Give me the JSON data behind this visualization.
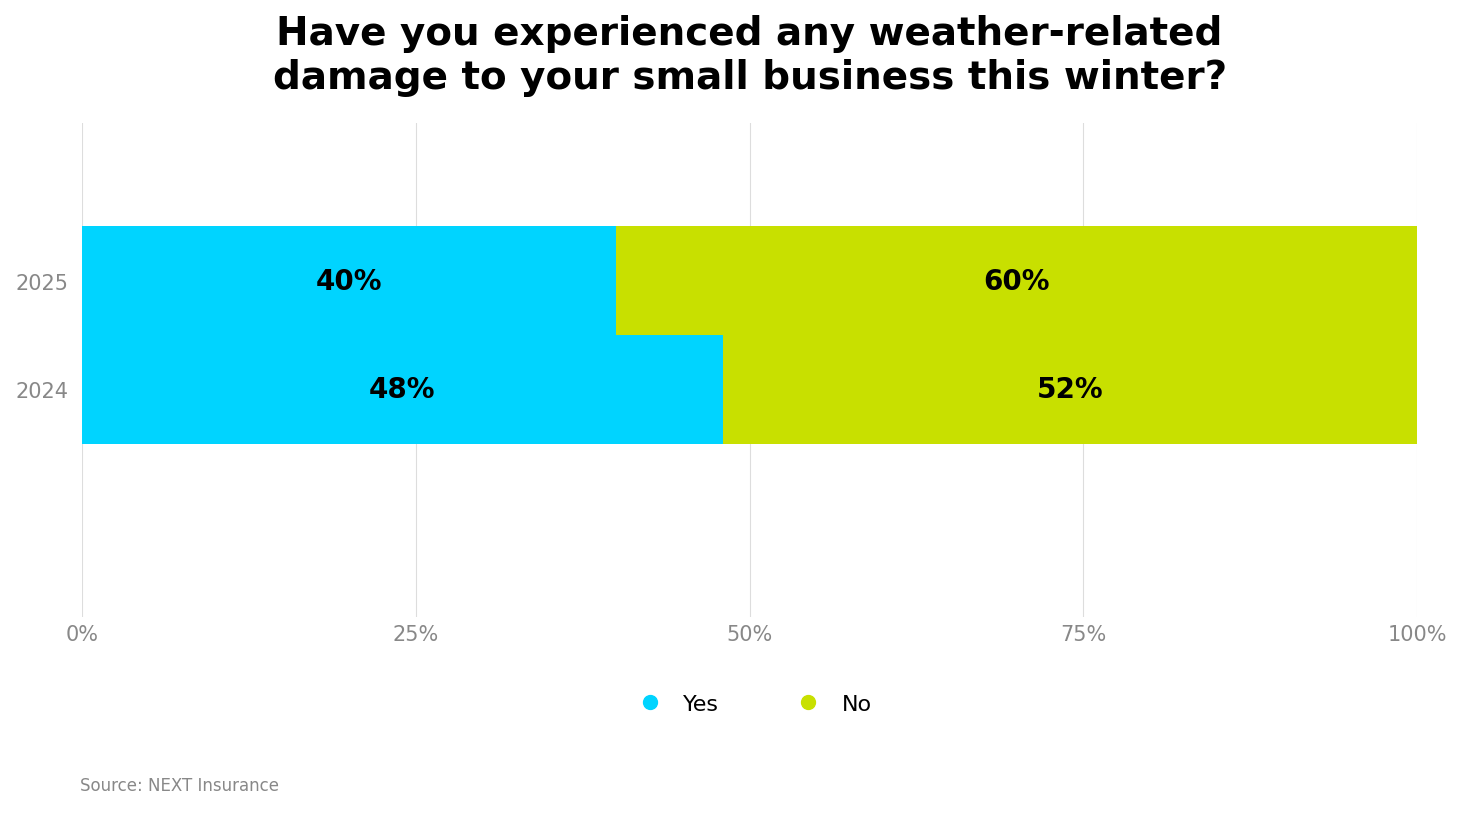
{
  "title": "Have you experienced any weather-related\ndamage to your small business this winter?",
  "years": [
    "2025",
    "2024"
  ],
  "yes_values": [
    40,
    48
  ],
  "no_values": [
    60,
    52
  ],
  "yes_color": "#00D4FF",
  "no_color": "#C8E000",
  "background_color": "#FFFFFF",
  "title_fontsize": 28,
  "label_fontsize": 20,
  "tick_fontsize": 15,
  "legend_fontsize": 16,
  "source_text": "Source: NEXT Insurance",
  "source_fontsize": 12,
  "bar_height": 0.22,
  "xlim": [
    0,
    100
  ],
  "xticks": [
    0,
    25,
    50,
    75,
    100
  ],
  "xtick_labels": [
    "0%",
    "25%",
    "50%",
    "75%",
    "100%"
  ]
}
